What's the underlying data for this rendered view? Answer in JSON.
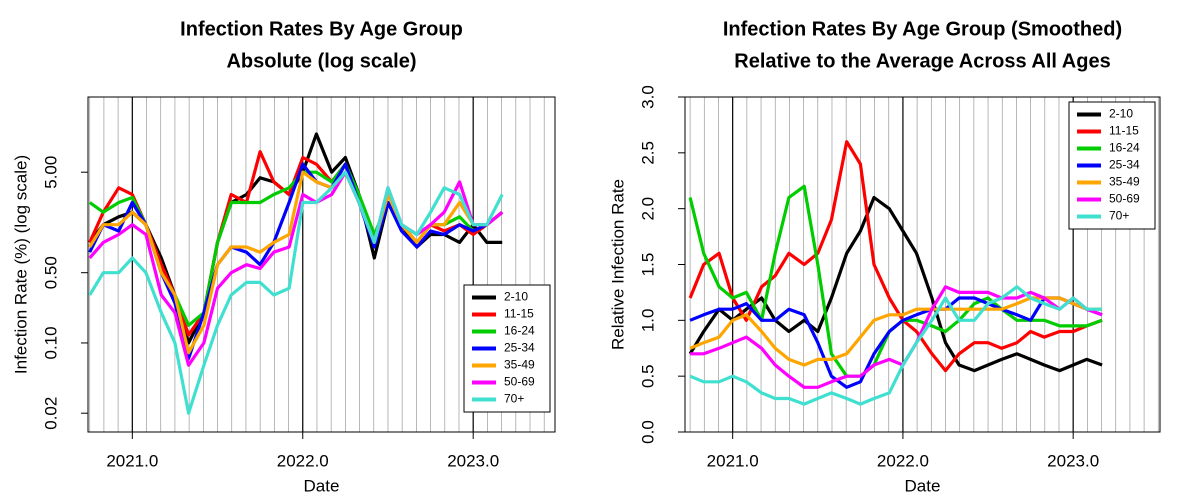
{
  "chart_data": [
    {
      "type": "line",
      "title": "Infection Rates By Age Group",
      "subtitle": "Absolute (log scale)",
      "xlabel": "Date",
      "ylabel": "Infection Rate (%) (log scale)",
      "log_y": true,
      "grid": true,
      "legend": "bottomright",
      "xlim": [
        2020.74,
        2023.48
      ],
      "xticks": [
        {
          "value": 2021,
          "label": "2021.0"
        },
        {
          "value": 2022,
          "label": "2022.0"
        },
        {
          "value": 2023,
          "label": "2023.0"
        }
      ],
      "ylim": [
        0.013,
        28
      ],
      "yticks": [
        0.02,
        {
          "value": 0.1,
          "label": "0.10"
        },
        {
          "value": 0.5,
          "label": "0.50"
        },
        {
          "value": 5,
          "label": "5.00"
        }
      ],
      "x": [
        2020.75,
        2020.83,
        2020.92,
        2021.0,
        2021.08,
        2021.17,
        2021.25,
        2021.33,
        2021.42,
        2021.5,
        2021.58,
        2021.67,
        2021.75,
        2021.83,
        2021.92,
        2022.0,
        2022.08,
        2022.17,
        2022.25,
        2022.33,
        2022.42,
        2022.5,
        2022.58,
        2022.67,
        2022.75,
        2022.83,
        2022.92,
        2023.0,
        2023.08,
        2023.17
      ],
      "series": [
        {
          "name": "2-10",
          "color": "#000000",
          "values": [
            1.0,
            1.5,
            1.8,
            2.0,
            1.5,
            0.7,
            0.3,
            0.1,
            0.2,
            1.0,
            2.5,
            3.0,
            4.4,
            4.0,
            3.0,
            5.0,
            12,
            5.0,
            7.0,
            3.0,
            0.7,
            2.5,
            1.5,
            0.9,
            1.2,
            1.2,
            1.0,
            1.5,
            1.0,
            1.0
          ]
        },
        {
          "name": "11-15",
          "color": "#ff0000",
          "values": [
            1.0,
            2.0,
            3.5,
            3.0,
            1.5,
            0.6,
            0.3,
            0.12,
            0.2,
            1.0,
            3.0,
            2.5,
            8.0,
            4.0,
            3.0,
            7.0,
            6.0,
            4.0,
            6.0,
            2.5,
            1.0,
            2.5,
            1.5,
            1.0,
            1.5,
            1.3,
            1.5,
            1.2,
            1.5,
            2.0
          ]
        },
        {
          "name": "16-24",
          "color": "#00cc00",
          "values": [
            2.5,
            2.0,
            2.5,
            2.8,
            1.5,
            0.5,
            0.3,
            0.15,
            0.2,
            1.0,
            2.5,
            2.5,
            2.5,
            3.0,
            3.5,
            5.0,
            5.0,
            4.0,
            6.0,
            3.0,
            1.2,
            2.5,
            1.5,
            1.2,
            1.5,
            1.5,
            1.8,
            1.3,
            1.5,
            2.0
          ]
        },
        {
          "name": "25-34",
          "color": "#0000ff",
          "values": [
            0.8,
            1.5,
            1.3,
            2.5,
            1.5,
            0.5,
            0.25,
            0.07,
            0.2,
            0.6,
            0.9,
            0.8,
            0.6,
            1.0,
            2.5,
            6.0,
            4.0,
            3.5,
            6.0,
            2.5,
            0.9,
            2.5,
            1.3,
            0.9,
            1.3,
            1.2,
            1.5,
            1.3,
            1.5,
            2.0
          ]
        },
        {
          "name": "35-49",
          "color": "#ffa500",
          "values": [
            0.9,
            1.5,
            1.5,
            2.0,
            1.5,
            0.5,
            0.3,
            0.08,
            0.15,
            0.6,
            0.9,
            0.9,
            0.8,
            1.0,
            1.2,
            5.0,
            4.0,
            3.5,
            5.0,
            2.5,
            1.0,
            3.0,
            1.5,
            1.0,
            1.5,
            1.5,
            2.5,
            1.5,
            1.5,
            2.0
          ]
        },
        {
          "name": "50-69",
          "color": "#ff00ff",
          "values": [
            0.7,
            1.0,
            1.2,
            1.5,
            1.2,
            0.3,
            0.2,
            0.06,
            0.1,
            0.35,
            0.5,
            0.6,
            0.55,
            0.8,
            0.9,
            3.0,
            2.5,
            3.0,
            5.0,
            2.5,
            1.0,
            3.5,
            1.5,
            1.2,
            1.5,
            2.0,
            4.0,
            1.5,
            1.5,
            2.0
          ]
        },
        {
          "name": "70+",
          "color": "#40e0d0",
          "values": [
            0.3,
            0.5,
            0.5,
            0.7,
            0.5,
            0.2,
            0.1,
            0.02,
            0.06,
            0.15,
            0.3,
            0.4,
            0.4,
            0.3,
            0.35,
            2.5,
            2.5,
            3.5,
            5.0,
            2.5,
            1.0,
            3.5,
            1.5,
            1.2,
            2.0,
            3.5,
            3.0,
            1.5,
            1.5,
            3.0
          ]
        }
      ]
    },
    {
      "type": "line",
      "title": "Infection Rates By Age Group (Smoothed)",
      "subtitle": "Relative to the Average Across All Ages",
      "xlabel": "Date",
      "ylabel": "Relative Infection Rate",
      "log_y": false,
      "grid": true,
      "legend": "topright",
      "xlim": [
        2020.72,
        2023.51
      ],
      "xticks": [
        {
          "value": 2021,
          "label": "2021.0"
        },
        {
          "value": 2022,
          "label": "2022.0"
        },
        {
          "value": 2023,
          "label": "2023.0"
        }
      ],
      "ylim": [
        0,
        3
      ],
      "yticks": [
        {
          "value": 0,
          "label": "0.0"
        },
        0.5,
        {
          "value": 1,
          "label": "1.0"
        },
        1.5,
        {
          "value": 2,
          "label": "2.0"
        },
        2.5,
        {
          "value": 3,
          "label": "3.0"
        }
      ],
      "x": [
        2020.75,
        2020.83,
        2020.92,
        2021.0,
        2021.08,
        2021.17,
        2021.25,
        2021.33,
        2021.42,
        2021.5,
        2021.58,
        2021.67,
        2021.75,
        2021.83,
        2021.92,
        2022.0,
        2022.08,
        2022.17,
        2022.25,
        2022.33,
        2022.42,
        2022.5,
        2022.58,
        2022.67,
        2022.75,
        2022.83,
        2022.92,
        2023.0,
        2023.08,
        2023.17
      ],
      "series": [
        {
          "name": "2-10",
          "color": "#000000",
          "values": [
            0.7,
            0.9,
            1.1,
            1.0,
            1.1,
            1.2,
            1.0,
            0.9,
            1.0,
            0.9,
            1.2,
            1.6,
            1.8,
            2.1,
            2.0,
            1.8,
            1.6,
            1.2,
            0.8,
            0.6,
            0.55,
            0.6,
            0.65,
            0.7,
            0.65,
            0.6,
            0.55,
            0.6,
            0.65,
            0.6
          ]
        },
        {
          "name": "11-15",
          "color": "#ff0000",
          "values": [
            1.2,
            1.5,
            1.6,
            1.2,
            1.0,
            1.3,
            1.4,
            1.6,
            1.5,
            1.6,
            1.9,
            2.6,
            2.4,
            1.5,
            1.2,
            1.0,
            0.9,
            0.7,
            0.55,
            0.7,
            0.8,
            0.8,
            0.75,
            0.8,
            0.9,
            0.85,
            0.9,
            0.9,
            0.95,
            1.0
          ]
        },
        {
          "name": "16-24",
          "color": "#00cc00",
          "values": [
            2.1,
            1.6,
            1.3,
            1.2,
            1.25,
            1.0,
            1.6,
            2.1,
            2.2,
            1.5,
            0.7,
            0.5,
            0.5,
            0.6,
            0.9,
            1.0,
            1.0,
            0.95,
            0.9,
            1.0,
            1.15,
            1.2,
            1.1,
            1.0,
            1.0,
            1.0,
            0.95,
            0.95,
            0.95,
            1.0
          ]
        },
        {
          "name": "25-34",
          "color": "#0000ff",
          "values": [
            1.0,
            1.05,
            1.1,
            1.1,
            1.15,
            1.0,
            1.0,
            1.1,
            1.05,
            0.8,
            0.5,
            0.4,
            0.45,
            0.7,
            0.9,
            1.0,
            1.05,
            1.1,
            1.1,
            1.2,
            1.2,
            1.15,
            1.1,
            1.05,
            1.0,
            1.2,
            1.2,
            1.15,
            1.1,
            1.05
          ]
        },
        {
          "name": "35-49",
          "color": "#ffa500",
          "values": [
            0.75,
            0.8,
            0.85,
            1.0,
            1.05,
            0.9,
            0.75,
            0.65,
            0.6,
            0.65,
            0.65,
            0.7,
            0.85,
            1.0,
            1.05,
            1.05,
            1.1,
            1.1,
            1.1,
            1.1,
            1.1,
            1.1,
            1.1,
            1.15,
            1.2,
            1.2,
            1.2,
            1.15,
            1.1,
            1.1
          ]
        },
        {
          "name": "50-69",
          "color": "#ff00ff",
          "values": [
            0.7,
            0.7,
            0.75,
            0.8,
            0.85,
            0.75,
            0.6,
            0.5,
            0.4,
            0.4,
            0.45,
            0.5,
            0.5,
            0.6,
            0.65,
            0.6,
            0.8,
            1.1,
            1.3,
            1.25,
            1.25,
            1.25,
            1.2,
            1.2,
            1.25,
            1.2,
            1.1,
            1.2,
            1.1,
            1.05
          ]
        },
        {
          "name": "70+",
          "color": "#40e0d0",
          "values": [
            0.5,
            0.45,
            0.45,
            0.5,
            0.45,
            0.35,
            0.3,
            0.3,
            0.25,
            0.3,
            0.35,
            0.3,
            0.25,
            0.3,
            0.35,
            0.6,
            0.8,
            1.0,
            1.2,
            1.0,
            1.0,
            1.15,
            1.2,
            1.3,
            1.2,
            1.15,
            1.1,
            1.2,
            1.1,
            1.1
          ]
        }
      ]
    }
  ]
}
